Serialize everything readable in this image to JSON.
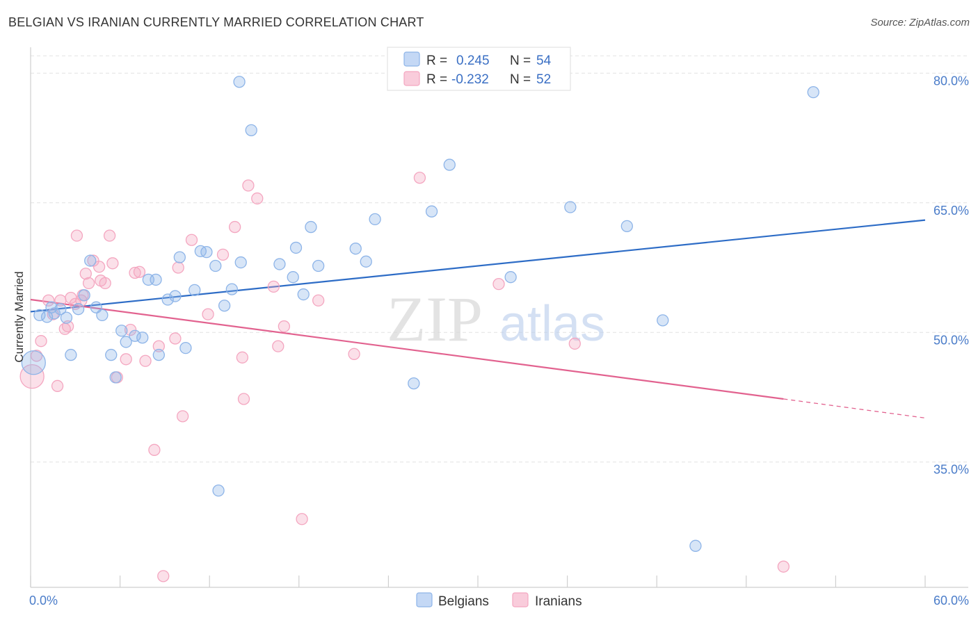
{
  "header": {
    "title": "BELGIAN VS IRANIAN CURRENTLY MARRIED CORRELATION CHART",
    "source": "Source: ZipAtlas.com"
  },
  "watermark": {
    "zip": "ZIP",
    "atlas": "atlas"
  },
  "legend": {
    "r_label": "R =",
    "n_label": "N =",
    "rows": [
      {
        "r": "0.245",
        "n": "54"
      },
      {
        "r": "-0.232",
        "n": "52"
      }
    ]
  },
  "chart_data": {
    "type": "scatter",
    "title": "BELGIAN VS IRANIAN CURRENTLY MARRIED CORRELATION CHART",
    "xlabel": "",
    "ylabel": "Currently Married",
    "xlim": [
      0,
      60
    ],
    "ylim": [
      20.5,
      83
    ],
    "x_tick_labels": [
      "0.0%",
      "60.0%"
    ],
    "y_ticks": [
      35,
      50,
      65,
      80
    ],
    "y_tick_labels": [
      "35.0%",
      "50.0%",
      "65.0%",
      "80.0%"
    ],
    "grid": true,
    "legend_position": "top-center",
    "series": [
      {
        "name": "Belgians",
        "color": "#8db4e8",
        "line_color": "#2d6cc6",
        "trend": {
          "x0": 0,
          "y0": 52.4,
          "x1": 60,
          "y1": 63.0
        },
        "points": [
          [
            0.2,
            46.5
          ],
          [
            0.6,
            52.0
          ],
          [
            1.1,
            51.8
          ],
          [
            1.4,
            52.9
          ],
          [
            2.0,
            52.7
          ],
          [
            2.4,
            51.7
          ],
          [
            2.7,
            47.4
          ],
          [
            3.2,
            52.7
          ],
          [
            3.6,
            54.3
          ],
          [
            4.0,
            58.3
          ],
          [
            4.4,
            52.9
          ],
          [
            4.8,
            52.0
          ],
          [
            5.4,
            47.4
          ],
          [
            5.7,
            44.8
          ],
          [
            6.1,
            50.2
          ],
          [
            6.4,
            48.9
          ],
          [
            7.0,
            49.6
          ],
          [
            7.5,
            49.4
          ],
          [
            7.9,
            56.1
          ],
          [
            8.4,
            56.1
          ],
          [
            8.6,
            47.4
          ],
          [
            9.2,
            53.8
          ],
          [
            9.7,
            54.2
          ],
          [
            10.0,
            58.7
          ],
          [
            10.4,
            48.2
          ],
          [
            11.0,
            54.9
          ],
          [
            11.4,
            59.4
          ],
          [
            11.8,
            59.3
          ],
          [
            12.4,
            57.7
          ],
          [
            12.6,
            31.7
          ],
          [
            13.0,
            53.1
          ],
          [
            13.5,
            55.0
          ],
          [
            14.1,
            58.1
          ],
          [
            14.0,
            79.0
          ],
          [
            14.8,
            73.4
          ],
          [
            16.7,
            57.9
          ],
          [
            17.6,
            56.4
          ],
          [
            17.8,
            59.8
          ],
          [
            18.3,
            54.4
          ],
          [
            18.8,
            62.2
          ],
          [
            19.3,
            57.7
          ],
          [
            21.8,
            59.7
          ],
          [
            22.5,
            58.2
          ],
          [
            23.1,
            63.1
          ],
          [
            25.7,
            44.1
          ],
          [
            26.9,
            64.0
          ],
          [
            28.1,
            69.4
          ],
          [
            32.2,
            56.4
          ],
          [
            36.2,
            64.5
          ],
          [
            40.0,
            62.3
          ],
          [
            42.4,
            51.4
          ],
          [
            44.6,
            25.3
          ],
          [
            52.5,
            77.8
          ],
          [
            1.6,
            52.2
          ]
        ]
      },
      {
        "name": "Iranians",
        "color": "#f4a6c0",
        "line_color": "#e2628f",
        "trend": {
          "x0": 0,
          "y0": 53.8,
          "x1": 50.5,
          "y1": 42.3
        },
        "trend_dashed": {
          "x0": 50.5,
          "y0": 42.3,
          "x1": 60,
          "y1": 40.1
        },
        "points": [
          [
            0.1,
            44.9
          ],
          [
            0.4,
            47.3
          ],
          [
            0.7,
            49.0
          ],
          [
            1.2,
            53.7
          ],
          [
            1.5,
            52.1
          ],
          [
            1.8,
            43.8
          ],
          [
            2.0,
            53.7
          ],
          [
            2.3,
            50.4
          ],
          [
            2.7,
            54.0
          ],
          [
            2.5,
            50.7
          ],
          [
            3.0,
            53.3
          ],
          [
            3.1,
            61.2
          ],
          [
            3.4,
            53.7
          ],
          [
            3.5,
            54.3
          ],
          [
            3.7,
            56.8
          ],
          [
            3.9,
            55.7
          ],
          [
            4.2,
            58.3
          ],
          [
            4.6,
            57.6
          ],
          [
            4.7,
            56.0
          ],
          [
            5.0,
            55.7
          ],
          [
            5.3,
            61.2
          ],
          [
            5.5,
            58.0
          ],
          [
            5.8,
            44.8
          ],
          [
            6.4,
            46.9
          ],
          [
            6.7,
            50.3
          ],
          [
            7.0,
            56.9
          ],
          [
            7.3,
            57.0
          ],
          [
            7.7,
            46.7
          ],
          [
            8.3,
            36.4
          ],
          [
            8.6,
            48.4
          ],
          [
            8.9,
            21.8
          ],
          [
            9.7,
            49.3
          ],
          [
            9.9,
            57.5
          ],
          [
            10.2,
            40.3
          ],
          [
            10.8,
            60.7
          ],
          [
            11.9,
            52.1
          ],
          [
            12.9,
            59.0
          ],
          [
            13.7,
            62.2
          ],
          [
            14.2,
            47.1
          ],
          [
            14.3,
            42.3
          ],
          [
            14.6,
            67.0
          ],
          [
            15.2,
            65.5
          ],
          [
            16.3,
            55.3
          ],
          [
            16.6,
            48.4
          ],
          [
            17.0,
            50.7
          ],
          [
            18.2,
            28.4
          ],
          [
            19.3,
            53.7
          ],
          [
            21.7,
            47.5
          ],
          [
            26.1,
            67.9
          ],
          [
            31.4,
            55.6
          ],
          [
            36.5,
            48.7
          ],
          [
            50.5,
            22.9
          ]
        ]
      }
    ]
  }
}
